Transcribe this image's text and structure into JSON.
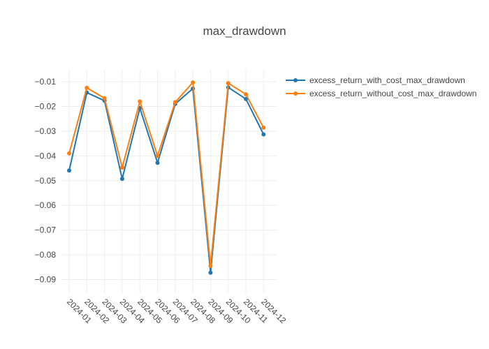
{
  "chart_data": {
    "type": "line",
    "title": "max_drawdown",
    "categories": [
      "2024-01",
      "2024-02",
      "2024-03",
      "2024-04",
      "2024-05",
      "2024-06",
      "2024-07",
      "2024-08",
      "2024-09",
      "2024-10",
      "2024-11",
      "2024-12"
    ],
    "series": [
      {
        "name": "excess_return_with_cost_max_drawdown",
        "color": "#1f77b4",
        "values": [
          -0.0459,
          -0.0144,
          -0.0177,
          -0.0493,
          -0.0207,
          -0.0428,
          -0.019,
          -0.0128,
          -0.0872,
          -0.0123,
          -0.017,
          -0.0313
        ]
      },
      {
        "name": "excess_return_without_cost_max_drawdown",
        "color": "#ff7f0e",
        "values": [
          -0.039,
          -0.0125,
          -0.0167,
          -0.0447,
          -0.018,
          -0.04,
          -0.0183,
          -0.0103,
          -0.0845,
          -0.0106,
          -0.0151,
          -0.0286
        ]
      }
    ],
    "y_ticks": [
      "−0.01",
      "−0.02",
      "−0.03",
      "−0.04",
      "−0.05",
      "−0.06",
      "−0.07",
      "−0.08",
      "−0.09"
    ],
    "y_tick_values": [
      -0.01,
      -0.02,
      -0.03,
      -0.04,
      -0.05,
      -0.06,
      -0.07,
      -0.08,
      -0.09
    ],
    "ylim": [
      -0.0955,
      -0.0052
    ],
    "grid": true,
    "legend_position": "top-right"
  }
}
